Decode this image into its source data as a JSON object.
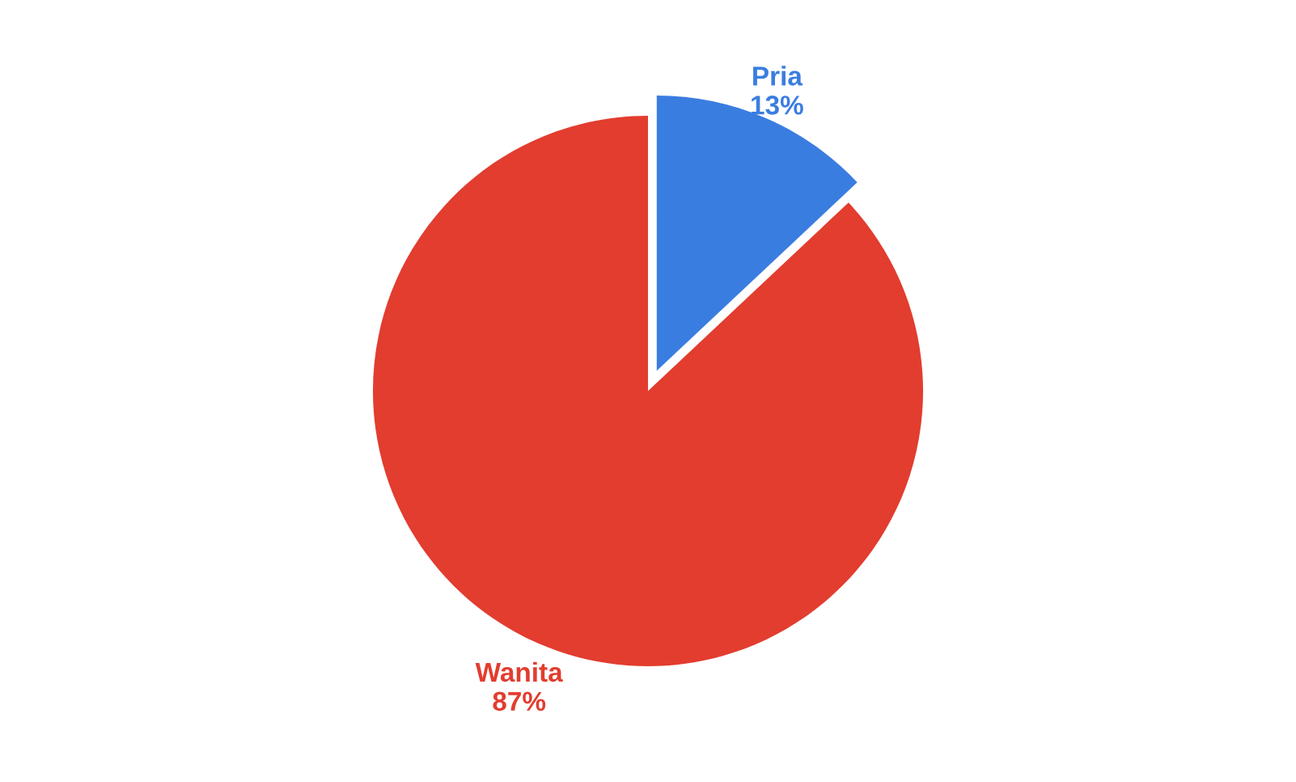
{
  "chart_data": {
    "type": "pie",
    "categories": [
      "Pria",
      "Wanita"
    ],
    "values": [
      13,
      87
    ],
    "value_labels": [
      "13%",
      "87%"
    ],
    "colors": [
      "#3a7de0",
      "#e23d2f"
    ],
    "legend": false
  }
}
